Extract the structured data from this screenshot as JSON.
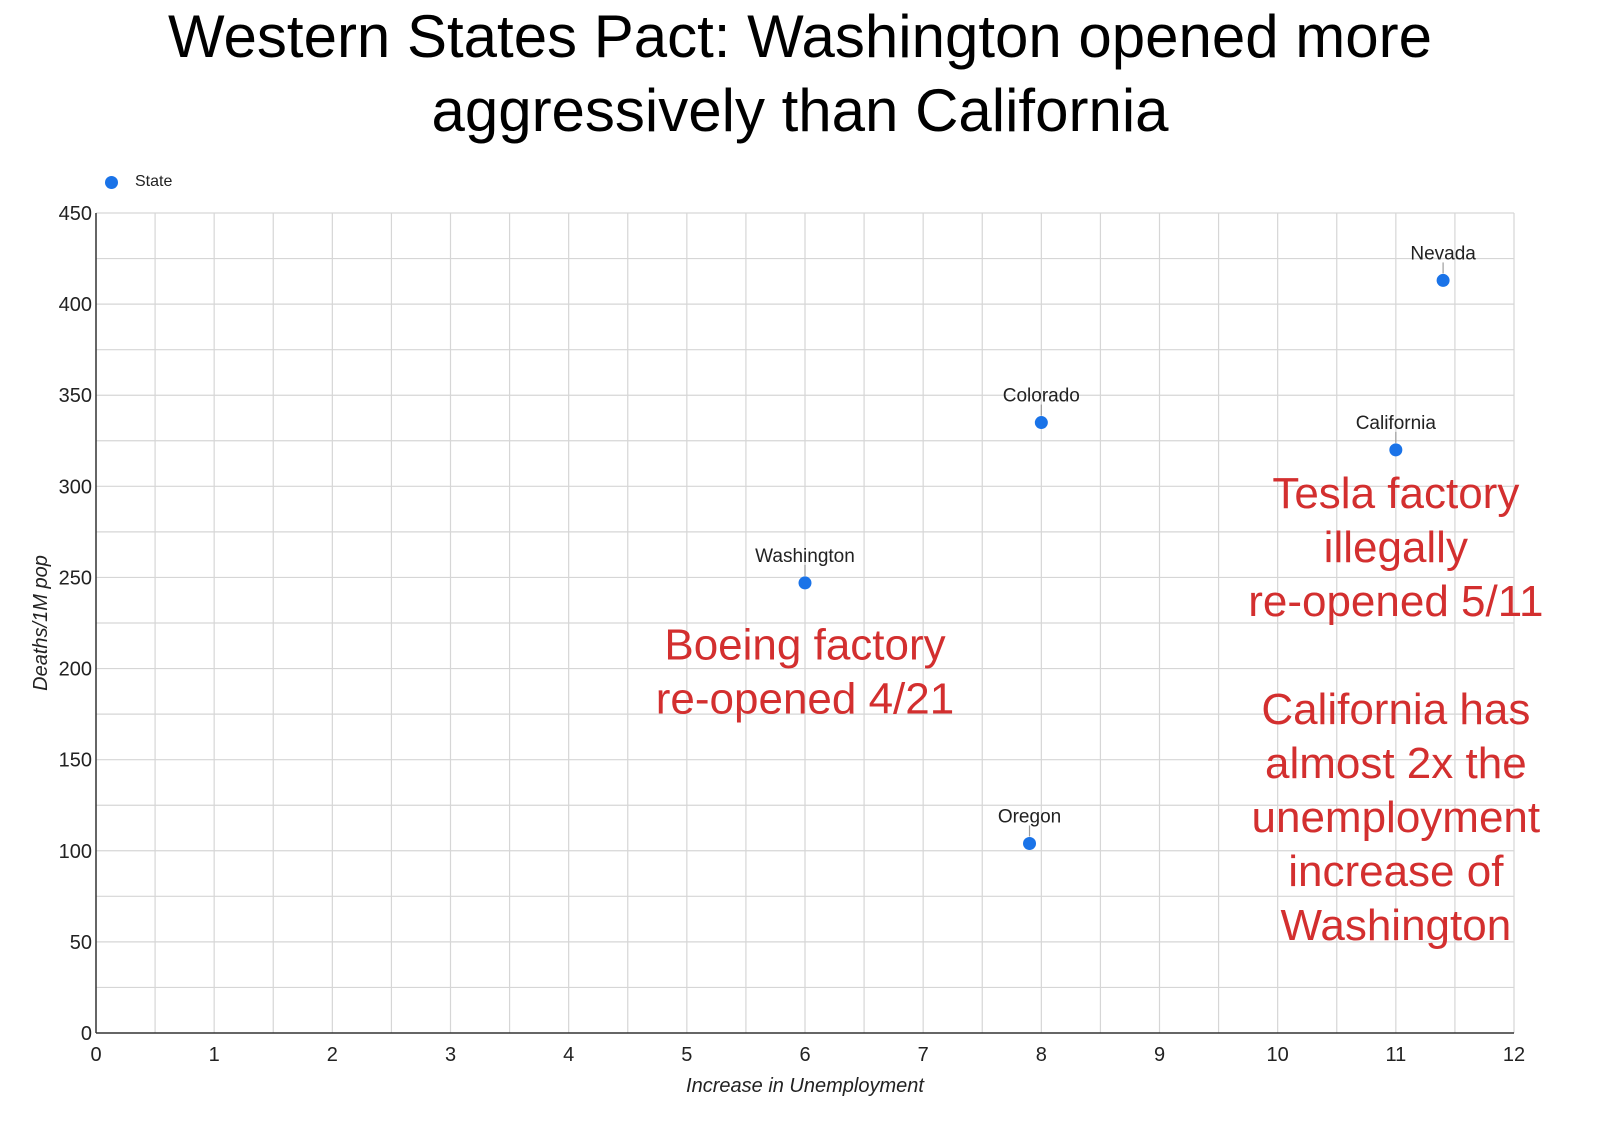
{
  "title_lines": [
    "Western States Pact: Washington opened more",
    "aggressively than California"
  ],
  "legend": {
    "label": "State",
    "color": "#1a73e8"
  },
  "chart_data": {
    "type": "scatter",
    "title": "Western States Pact: Washington opened more aggressively than California",
    "xlabel": "Increase in Unemployment",
    "ylabel": "Deaths/1M pop",
    "xlim": [
      0,
      12
    ],
    "ylim": [
      0,
      450
    ],
    "xticks": [
      0,
      1,
      2,
      3,
      4,
      5,
      6,
      7,
      8,
      9,
      10,
      11,
      12
    ],
    "yticks": [
      0,
      50,
      100,
      150,
      200,
      250,
      300,
      350,
      400,
      450
    ],
    "grid": true,
    "legend_position": "top-left",
    "series": [
      {
        "name": "State",
        "color": "#1a73e8",
        "points": [
          {
            "label": "Nevada",
            "x": 11.4,
            "y": 413
          },
          {
            "label": "Colorado",
            "x": 8.0,
            "y": 335
          },
          {
            "label": "California",
            "x": 11.0,
            "y": 320
          },
          {
            "label": "Washington",
            "x": 6.0,
            "y": 247
          },
          {
            "label": "Oregon",
            "x": 7.9,
            "y": 104
          }
        ]
      }
    ],
    "annotations": [
      {
        "lines": [
          "Boeing factory",
          "re-opened 4/21"
        ],
        "x": 6.0,
        "y": 205,
        "color": "#d32f2f"
      },
      {
        "lines": [
          "Tesla factory",
          "illegally",
          "re-opened 5/11",
          "",
          "California has",
          "almost 2x the",
          "unemployment",
          "increase of",
          "Washington"
        ],
        "x": 11.0,
        "y": 288,
        "color": "#d32f2f"
      }
    ]
  }
}
